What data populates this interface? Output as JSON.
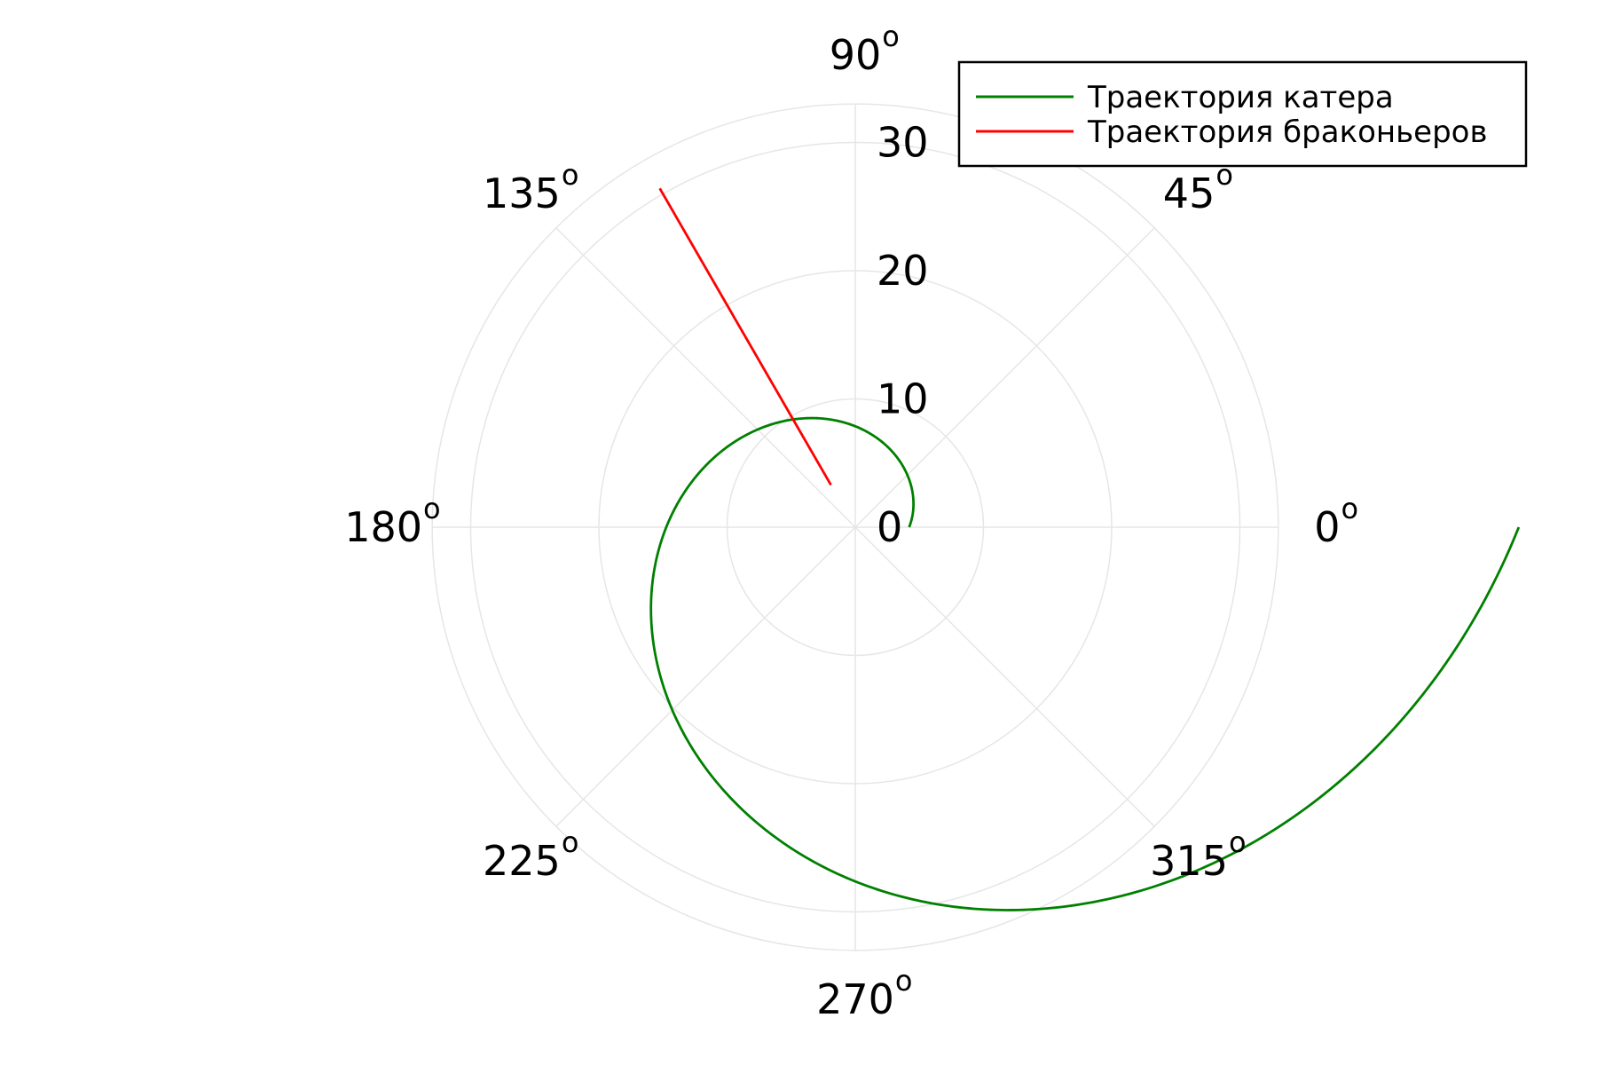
{
  "chart_data": {
    "type": "line",
    "projection": "polar",
    "title": "",
    "theta_unit": "radians",
    "rlim": [
      0,
      33
    ],
    "r_ticks": [
      "0",
      "10",
      "20",
      "30"
    ],
    "r_tick_values": [
      0,
      10,
      20,
      30
    ],
    "theta_ticks_deg": [
      0,
      45,
      90,
      135,
      180,
      225,
      270,
      315
    ],
    "theta_tick_labels": [
      "0",
      "45",
      "90",
      "135",
      "180",
      "225",
      "270",
      "315"
    ],
    "degree_mark": "o",
    "grid": true,
    "legend_position": "top-right",
    "series": [
      {
        "name": "Траектория катера",
        "color": "#008000",
        "form": "log-spiral",
        "r0": 4.2,
        "k": 0.3997,
        "theta_start": 0,
        "theta_end": 6.2832
      },
      {
        "name": "Траектория браконьеров",
        "color": "#ff0000",
        "form": "ray",
        "theta": 2.0944,
        "r_range": [
          3.8,
          30.5
        ]
      }
    ]
  }
}
